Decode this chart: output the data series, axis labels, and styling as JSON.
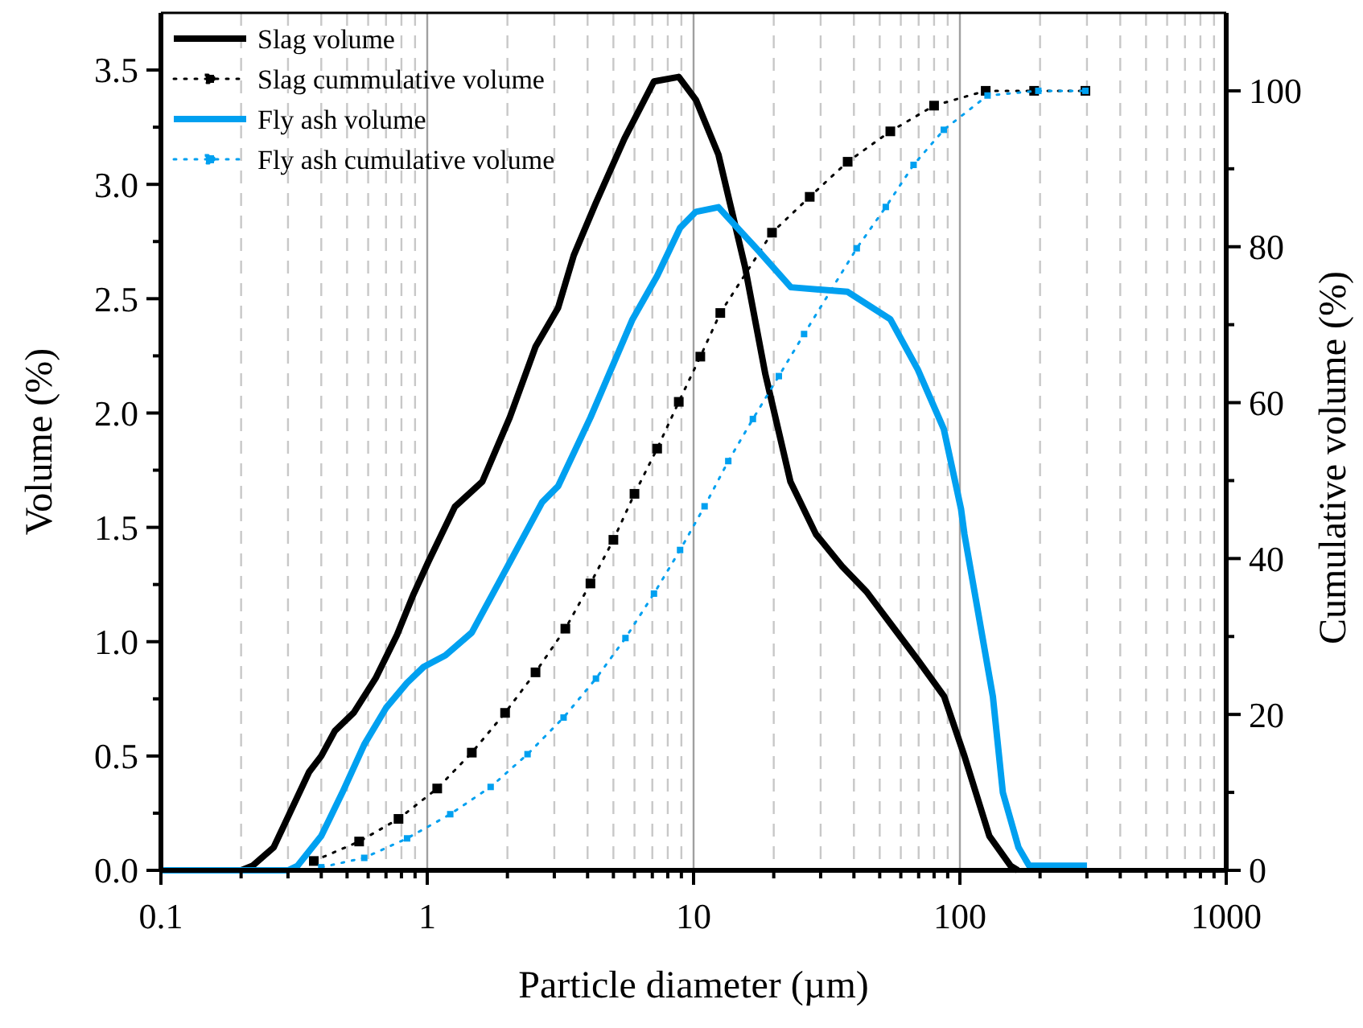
{
  "chart_data": {
    "type": "line",
    "xlabel": "Particle diameter (µm)",
    "ylabel": "Volume (%)",
    "y2label": "Cumulative volume (%)",
    "log": "x",
    "grid": "x",
    "legend": "top left",
    "xlim": [
      0.1,
      1000
    ],
    "xticks": [
      0.1,
      {
        "value": 0.2,
        "label": null
      },
      {
        "value": 0.3,
        "label": null
      },
      {
        "value": 0.4,
        "label": null
      },
      {
        "value": 0.5,
        "label": null
      },
      {
        "value": 0.6,
        "label": null
      },
      {
        "value": 0.7,
        "label": null
      },
      {
        "value": 0.8,
        "label": null
      },
      {
        "value": 0.9,
        "label": null
      },
      1,
      {
        "value": 2,
        "label": null
      },
      {
        "value": 3,
        "label": null
      },
      {
        "value": 4,
        "label": null
      },
      {
        "value": 5,
        "label": null
      },
      {
        "value": 6,
        "label": null
      },
      {
        "value": 7,
        "label": null
      },
      {
        "value": 8,
        "label": null
      },
      {
        "value": 9,
        "label": null
      },
      10,
      {
        "value": 20,
        "label": null
      },
      {
        "value": 30,
        "label": null
      },
      {
        "value": 40,
        "label": null
      },
      {
        "value": 50,
        "label": null
      },
      {
        "value": 60,
        "label": null
      },
      {
        "value": 70,
        "label": null
      },
      {
        "value": 80,
        "label": null
      },
      {
        "value": 90,
        "label": null
      },
      100,
      {
        "value": 200,
        "label": null
      },
      {
        "value": 300,
        "label": null
      },
      {
        "value": 400,
        "label": null
      },
      {
        "value": 500,
        "label": null
      },
      {
        "value": 600,
        "label": null
      },
      {
        "value": 700,
        "label": null
      },
      {
        "value": 800,
        "label": null
      },
      {
        "value": 900,
        "label": null
      },
      1000
    ],
    "ylim": [
      0,
      3.75
    ],
    "yticks": [
      {
        "value": 0,
        "label": "0.0"
      },
      {
        "value": 0.25,
        "label": null
      },
      {
        "value": 0.5,
        "label": "0.5"
      },
      {
        "value": 0.75,
        "label": null
      },
      {
        "value": 1,
        "label": "1.0"
      },
      {
        "value": 1.25,
        "label": null
      },
      {
        "value": 1.5,
        "label": "1.5"
      },
      {
        "value": 1.75,
        "label": null
      },
      {
        "value": 2,
        "label": "2.0"
      },
      {
        "value": 2.25,
        "label": null
      },
      {
        "value": 2.5,
        "label": "2.5"
      },
      {
        "value": 2.75,
        "label": null
      },
      {
        "value": 3,
        "label": "3.0"
      },
      {
        "value": 3.25,
        "label": null
      },
      {
        "value": 3.5,
        "label": "3.5"
      }
    ],
    "y2lim": [
      0,
      110
    ],
    "y2ticks": [
      0,
      {
        "value": 10,
        "label": null
      },
      20,
      {
        "value": 30,
        "label": null
      },
      40,
      {
        "value": 50,
        "label": null
      },
      60,
      {
        "value": 70,
        "label": null
      },
      80,
      {
        "value": 90,
        "label": null
      },
      100
    ],
    "series": [
      {
        "name": "Slag volume",
        "color": "#000000",
        "marker": "none",
        "line_style": "solid",
        "x": [
          0.1,
          0.2,
          0.221,
          0.265,
          0.36,
          0.4,
          0.45,
          0.53,
          0.64,
          0.77,
          0.89,
          1.01,
          1.27,
          1.61,
          2.04,
          2.55,
          3.1,
          3.55,
          4.3,
          5.5,
          7.1,
          8.8,
          10.2,
          12.4,
          15.6,
          18.6,
          23.1,
          28.8,
          36.1,
          44.5,
          54.8,
          69.5,
          87.3,
          104,
          129,
          155,
          165
        ],
        "values": [
          0,
          0,
          0.02,
          0.1,
          0.43,
          0.5,
          0.61,
          0.69,
          0.84,
          1.03,
          1.21,
          1.35,
          1.59,
          1.7,
          1.98,
          2.29,
          2.46,
          2.69,
          2.92,
          3.2,
          3.45,
          3.47,
          3.37,
          3.13,
          2.64,
          2.17,
          1.7,
          1.47,
          1.33,
          1.22,
          1.08,
          0.92,
          0.76,
          0.5,
          0.15,
          0.02,
          0
        ]
      },
      {
        "name": "Slag cummulative volume",
        "axis": "y2",
        "color": "#000000",
        "marker": "square",
        "line_style": "dotted",
        "x": [
          0.375,
          0.555,
          0.78,
          1.09,
          1.47,
          1.96,
          2.55,
          3.3,
          4.1,
          5.0,
          6.0,
          7.3,
          8.8,
          10.6,
          12.6,
          19.7,
          27.3,
          37.9,
          54.8,
          80,
          125,
          190,
          296
        ],
        "values": [
          1.2,
          3.7,
          6.6,
          10.5,
          15.1,
          20.2,
          25.4,
          31,
          36.8,
          42.4,
          48.3,
          54.1,
          60.1,
          65.9,
          71.5,
          81.8,
          86.4,
          90.9,
          94.8,
          98.1,
          100,
          100,
          100
        ]
      },
      {
        "name": "Fly ash volume",
        "color": "#00a0f0",
        "marker": "none",
        "line_style": "solid",
        "x": [
          0.1,
          0.3,
          0.326,
          0.4,
          0.48,
          0.58,
          0.7,
          0.84,
          0.97,
          1.17,
          1.47,
          1.86,
          2.7,
          3.1,
          4.1,
          5.9,
          7.3,
          8.9,
          10.2,
          12.4,
          17.2,
          23.2,
          37.9,
          54.8,
          69.5,
          87,
          101,
          104,
          133,
          145,
          166,
          182,
          300
        ],
        "values": [
          0,
          0,
          0.02,
          0.15,
          0.34,
          0.55,
          0.71,
          0.82,
          0.89,
          0.94,
          1.04,
          1.26,
          1.61,
          1.68,
          1.98,
          2.41,
          2.6,
          2.81,
          2.88,
          2.9,
          2.72,
          2.55,
          2.53,
          2.41,
          2.19,
          1.93,
          1.58,
          1.47,
          0.76,
          0.34,
          0.1,
          0.02,
          0.02
        ]
      },
      {
        "name": "Fly ash cumulative volume",
        "axis": "y2",
        "color": "#00a0f0",
        "marker": "square",
        "line_style": "dotted",
        "x": [
          0.4,
          0.58,
          0.84,
          1.22,
          1.73,
          2.38,
          3.25,
          4.3,
          5.55,
          7.1,
          8.9,
          11.0,
          13.5,
          16.7,
          20.9,
          26,
          41,
          52.7,
          67,
          87,
          127,
          197,
          296
        ],
        "values": [
          0.4,
          1.6,
          4.1,
          7.2,
          10.7,
          14.9,
          19.6,
          24.6,
          29.8,
          35.5,
          41.1,
          46.7,
          52.5,
          57.9,
          63.4,
          68.8,
          79.8,
          85.1,
          90.5,
          95,
          99.4,
          100,
          100
        ]
      }
    ]
  }
}
